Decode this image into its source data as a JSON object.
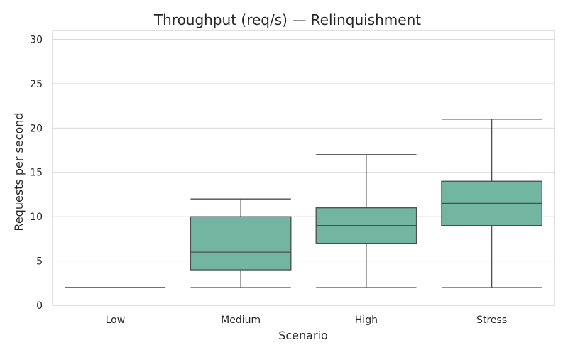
{
  "chart_data": {
    "type": "box",
    "title": "Throughput (req/s) — Relinquishment",
    "xlabel": "Scenario",
    "ylabel": "Requests per second",
    "categories": [
      "Low",
      "Medium",
      "High",
      "Stress"
    ],
    "boxes": [
      {
        "min": 2,
        "q1": 2,
        "median": 2,
        "q3": 2,
        "max": 2
      },
      {
        "min": 2,
        "q1": 4,
        "median": 6,
        "q3": 10,
        "max": 12
      },
      {
        "min": 2,
        "q1": 7,
        "median": 9,
        "q3": 11,
        "max": 17
      },
      {
        "min": 2,
        "q1": 9,
        "median": 11.5,
        "q3": 14,
        "max": 21
      }
    ],
    "ylim": [
      0,
      31
    ],
    "yticks": [
      0,
      5,
      10,
      15,
      20,
      25,
      30
    ],
    "grid": true,
    "colors": {
      "box_fill": "#72b6a1",
      "line": "#4d4d4d",
      "grid": "#d9d9d9",
      "spine": "#cccccc"
    }
  }
}
